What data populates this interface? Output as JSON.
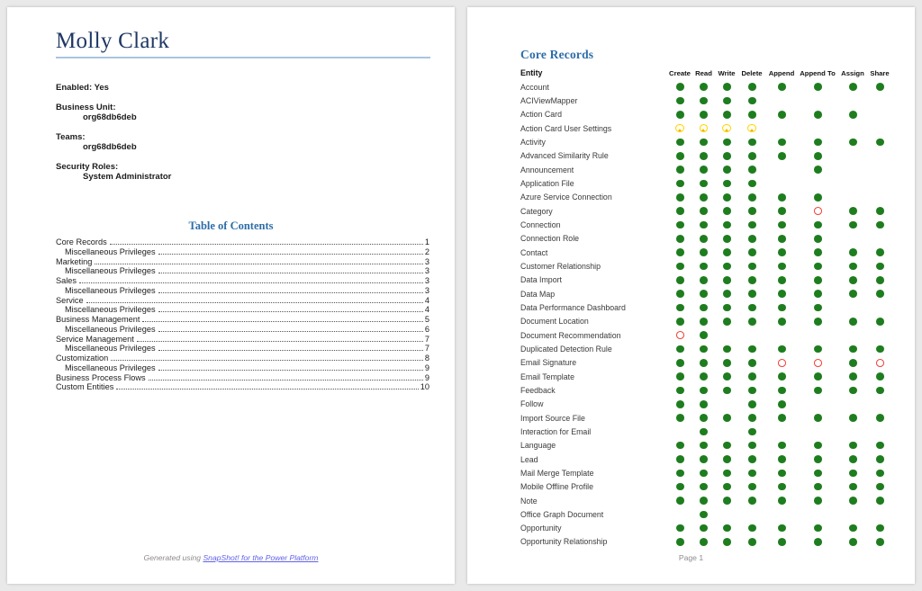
{
  "page1": {
    "title": "Molly Clark",
    "profile_fields": [
      {
        "label": "Enabled:",
        "value": "Yes",
        "inline": true
      },
      {
        "label": "Business Unit:",
        "value": "org68db6deb",
        "inline": false
      },
      {
        "label": "Teams:",
        "value": "org68db6deb",
        "inline": false
      },
      {
        "label": "Security Roles:",
        "value": "System Administrator",
        "inline": false
      }
    ],
    "toc": {
      "heading": "Table of Contents",
      "items": [
        {
          "label": "Core Records",
          "page": "1",
          "indent": 0
        },
        {
          "label": "Miscellaneous Privileges",
          "page": "2",
          "indent": 1
        },
        {
          "label": "Marketing",
          "page": "3",
          "indent": 0
        },
        {
          "label": "Miscellaneous Privileges",
          "page": "3",
          "indent": 1
        },
        {
          "label": "Sales",
          "page": "3",
          "indent": 0
        },
        {
          "label": "Miscellaneous Privileges",
          "page": "3",
          "indent": 1
        },
        {
          "label": "Service",
          "page": "4",
          "indent": 0
        },
        {
          "label": "Miscellaneous Privileges",
          "page": "4",
          "indent": 1
        },
        {
          "label": "Business Management",
          "page": "5",
          "indent": 0
        },
        {
          "label": "Miscellaneous Privileges",
          "page": "6",
          "indent": 1
        },
        {
          "label": "Service Management",
          "page": "7",
          "indent": 0
        },
        {
          "label": "Miscellaneous Privileges",
          "page": "7",
          "indent": 1
        },
        {
          "label": "Customization",
          "page": "8",
          "indent": 0
        },
        {
          "label": "Miscellaneous Privileges",
          "page": "9",
          "indent": 1
        },
        {
          "label": "Business Process Flows",
          "page": "9",
          "indent": 0
        },
        {
          "label": "Custom Entities",
          "page": "10",
          "indent": 0
        }
      ]
    },
    "footer": {
      "prefix": "Generated using ",
      "link_text": "SnapShot! for the Power Platform"
    }
  },
  "page2": {
    "heading": "Core Records",
    "table": {
      "entity_header": "Entity",
      "columns": [
        "Create",
        "Read",
        "Write",
        "Delete",
        "Append",
        "Append To",
        "Assign",
        "Share"
      ],
      "rows": [
        {
          "entity": "Account",
          "privileges": [
            "g",
            "g",
            "g",
            "g",
            "g",
            "g",
            "g",
            "g"
          ]
        },
        {
          "entity": "ACIViewMapper",
          "privileges": [
            "g",
            "g",
            "g",
            "g",
            "",
            "",
            "",
            ""
          ]
        },
        {
          "entity": "Action Card",
          "privileges": [
            "g",
            "g",
            "g",
            "g",
            "g",
            "g",
            "g",
            ""
          ]
        },
        {
          "entity": "Action Card User Settings",
          "privileges": [
            "y",
            "y",
            "y",
            "y",
            "",
            "",
            "",
            ""
          ]
        },
        {
          "entity": "Activity",
          "privileges": [
            "g",
            "g",
            "g",
            "g",
            "g",
            "g",
            "g",
            "g"
          ]
        },
        {
          "entity": "Advanced Similarity Rule",
          "privileges": [
            "g",
            "g",
            "g",
            "g",
            "g",
            "g",
            "",
            ""
          ]
        },
        {
          "entity": "Announcement",
          "privileges": [
            "g",
            "g",
            "g",
            "g",
            "",
            "g",
            "",
            ""
          ]
        },
        {
          "entity": "Application File",
          "privileges": [
            "g",
            "g",
            "g",
            "g",
            "",
            "",
            "",
            ""
          ]
        },
        {
          "entity": "Azure Service Connection",
          "privileges": [
            "g",
            "g",
            "g",
            "g",
            "g",
            "g",
            "",
            ""
          ]
        },
        {
          "entity": "Category",
          "privileges": [
            "g",
            "g",
            "g",
            "g",
            "g",
            "r",
            "g",
            "g"
          ]
        },
        {
          "entity": "Connection",
          "privileges": [
            "g",
            "g",
            "g",
            "g",
            "g",
            "g",
            "g",
            "g"
          ]
        },
        {
          "entity": "Connection Role",
          "privileges": [
            "g",
            "g",
            "g",
            "g",
            "g",
            "g",
            "",
            ""
          ]
        },
        {
          "entity": "Contact",
          "privileges": [
            "g",
            "g",
            "g",
            "g",
            "g",
            "g",
            "g",
            "g"
          ]
        },
        {
          "entity": "Customer Relationship",
          "privileges": [
            "g",
            "g",
            "g",
            "g",
            "g",
            "g",
            "g",
            "g"
          ]
        },
        {
          "entity": "Data Import",
          "privileges": [
            "g",
            "g",
            "g",
            "g",
            "g",
            "g",
            "g",
            "g"
          ]
        },
        {
          "entity": "Data Map",
          "privileges": [
            "g",
            "g",
            "g",
            "g",
            "g",
            "g",
            "g",
            "g"
          ]
        },
        {
          "entity": "Data Performance Dashboard",
          "privileges": [
            "g",
            "g",
            "g",
            "g",
            "g",
            "g",
            "",
            ""
          ]
        },
        {
          "entity": "Document Location",
          "privileges": [
            "g",
            "g",
            "g",
            "g",
            "g",
            "g",
            "g",
            "g"
          ]
        },
        {
          "entity": "Document Recommendation",
          "privileges": [
            "r",
            "g",
            "",
            "",
            "",
            "",
            "",
            ""
          ]
        },
        {
          "entity": "Duplicated Detection Rule",
          "privileges": [
            "g",
            "g",
            "g",
            "g",
            "g",
            "g",
            "g",
            "g"
          ]
        },
        {
          "entity": "Email Signature",
          "privileges": [
            "g",
            "g",
            "g",
            "g",
            "r",
            "r",
            "g",
            "r"
          ]
        },
        {
          "entity": "Email Template",
          "privileges": [
            "g",
            "g",
            "g",
            "g",
            "g",
            "g",
            "g",
            "g"
          ]
        },
        {
          "entity": "Feedback",
          "privileges": [
            "g",
            "g",
            "g",
            "g",
            "g",
            "g",
            "g",
            "g"
          ]
        },
        {
          "entity": "Follow",
          "privileges": [
            "g",
            "g",
            "",
            "g",
            "g",
            "",
            "",
            ""
          ]
        },
        {
          "entity": "Import Source File",
          "privileges": [
            "g",
            "g",
            "g",
            "g",
            "g",
            "g",
            "g",
            "g"
          ]
        },
        {
          "entity": "Interaction for Email",
          "privileges": [
            "",
            "g",
            "",
            "g",
            "",
            "",
            "",
            ""
          ]
        },
        {
          "entity": "Language",
          "privileges": [
            "g",
            "g",
            "g",
            "g",
            "g",
            "g",
            "g",
            "g"
          ]
        },
        {
          "entity": "Lead",
          "privileges": [
            "g",
            "g",
            "g",
            "g",
            "g",
            "g",
            "g",
            "g"
          ]
        },
        {
          "entity": "Mail Merge Template",
          "privileges": [
            "g",
            "g",
            "g",
            "g",
            "g",
            "g",
            "g",
            "g"
          ]
        },
        {
          "entity": "Mobile Offline Profile",
          "privileges": [
            "g",
            "g",
            "g",
            "g",
            "g",
            "g",
            "g",
            "g"
          ]
        },
        {
          "entity": "Note",
          "privileges": [
            "g",
            "g",
            "g",
            "g",
            "g",
            "g",
            "g",
            "g"
          ]
        },
        {
          "entity": "Office Graph Document",
          "privileges": [
            "",
            "g",
            "",
            "",
            "",
            "",
            "",
            ""
          ]
        },
        {
          "entity": "Opportunity",
          "privileges": [
            "g",
            "g",
            "g",
            "g",
            "g",
            "g",
            "g",
            "g"
          ]
        },
        {
          "entity": "Opportunity Relationship",
          "privileges": [
            "g",
            "g",
            "g",
            "g",
            "g",
            "g",
            "g",
            "g"
          ]
        }
      ]
    },
    "footer": "Page 1"
  },
  "colors": {
    "granted_dot": "#1e7d1e",
    "denied_ring": "#ee4035",
    "warning_ring": "#ffd400",
    "warning_core": "#f0b400",
    "heading_blue": "#2d6da8",
    "title_navy": "#1f3864",
    "link_blue": "#6262e8"
  }
}
